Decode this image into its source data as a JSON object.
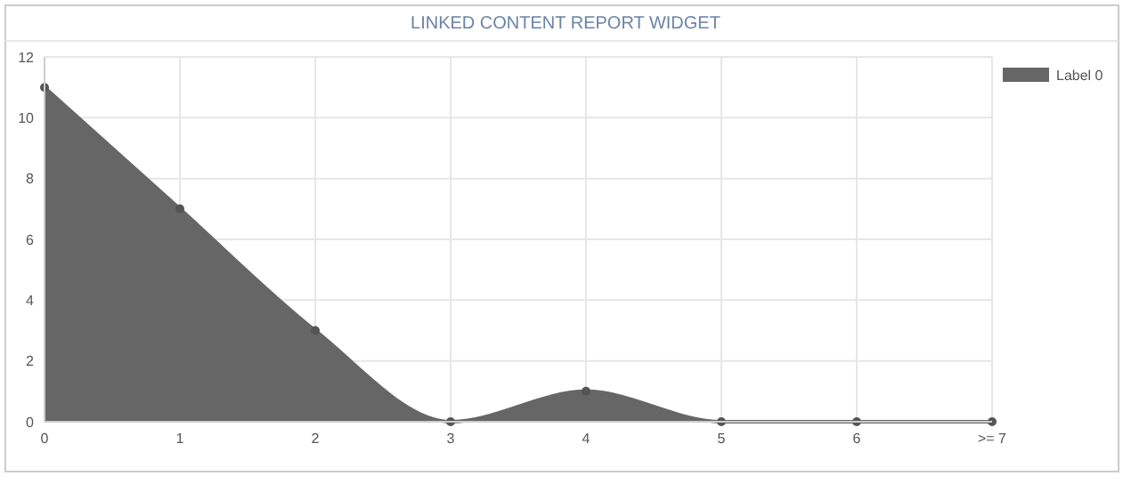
{
  "chart_data": {
    "type": "area",
    "title": "LINKED CONTENT REPORT WIDGET",
    "categories": [
      "0",
      "1",
      "2",
      "3",
      "4",
      "5",
      "6",
      ">= 7"
    ],
    "series": [
      {
        "name": "Label 0",
        "color": "#666666",
        "values": [
          11,
          7,
          3,
          0,
          1,
          0,
          0,
          0
        ]
      }
    ],
    "ylim": [
      0,
      12
    ],
    "yticks": [
      0,
      2,
      4,
      6,
      8,
      10,
      12
    ],
    "grid": true,
    "legend": "top right",
    "marker": "circle"
  }
}
